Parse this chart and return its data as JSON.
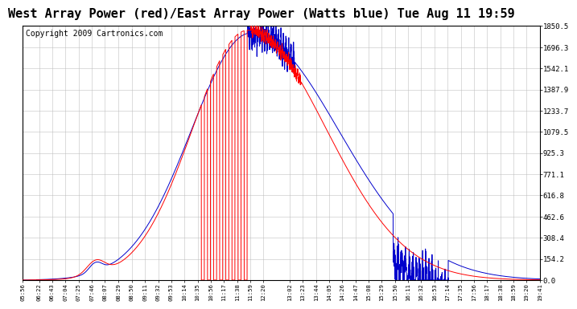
{
  "title": "West Array Power (red)/East Array Power (Watts blue) Tue Aug 11 19:59",
  "copyright": "Copyright 2009 Cartronics.com",
  "bg_color": "#ffffff",
  "plot_bg_color": "#ffffff",
  "grid_color": "#bbbbbb",
  "red_color": "#ff0000",
  "blue_color": "#0000cc",
  "ylim": [
    0,
    1850.5
  ],
  "yticks": [
    0.0,
    154.2,
    308.4,
    462.6,
    616.8,
    771.1,
    925.3,
    1079.5,
    1233.7,
    1387.9,
    1542.1,
    1696.3,
    1850.5
  ],
  "xtick_labels": [
    "05:56",
    "06:22",
    "06:43",
    "07:04",
    "07:25",
    "07:46",
    "08:07",
    "08:29",
    "08:50",
    "09:11",
    "09:32",
    "09:53",
    "10:14",
    "10:35",
    "10:56",
    "11:17",
    "11:38",
    "11:59",
    "12:20",
    "13:02",
    "13:23",
    "13:44",
    "14:05",
    "14:26",
    "14:47",
    "15:08",
    "15:29",
    "15:50",
    "16:11",
    "16:32",
    "16:53",
    "17:14",
    "17:35",
    "17:56",
    "18:17",
    "18:38",
    "18:59",
    "19:20",
    "19:41"
  ],
  "title_fontsize": 11,
  "copyright_fontsize": 7
}
